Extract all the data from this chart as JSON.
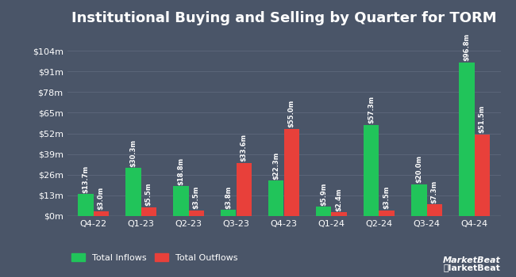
{
  "title": "Institutional Buying and Selling by Quarter for TORM",
  "quarters": [
    "Q4-22",
    "Q1-23",
    "Q2-23",
    "Q3-23",
    "Q4-23",
    "Q1-24",
    "Q2-24",
    "Q3-24",
    "Q4-24"
  ],
  "inflows": [
    13.7,
    30.3,
    18.8,
    3.8,
    22.3,
    5.9,
    57.3,
    20.0,
    96.8
  ],
  "outflows": [
    3.0,
    5.5,
    3.5,
    33.6,
    55.0,
    2.4,
    3.5,
    7.3,
    51.5
  ],
  "inflow_labels": [
    "$13.7m",
    "$30.3m",
    "$18.8m",
    "$3.8m",
    "$22.3m",
    "$5.9m",
    "$57.3m",
    "$20.0m",
    "$96.8m"
  ],
  "outflow_labels": [
    "$3.0m",
    "$5.5m",
    "$3.5m",
    "$33.6m",
    "$55.0m",
    "$2.4m",
    "$3.5m",
    "$7.3m",
    "$51.5m"
  ],
  "inflow_color": "#21c45a",
  "outflow_color": "#e8403a",
  "background_color": "#4a5568",
  "grid_color": "#5a6478",
  "text_color": "#ffffff",
  "bar_width": 0.32,
  "ylim": [
    0,
    115
  ],
  "yticks": [
    0,
    13,
    26,
    39,
    52,
    65,
    78,
    91,
    104
  ],
  "ytick_labels": [
    "$0m",
    "$13m",
    "$26m",
    "$39m",
    "$52m",
    "$65m",
    "$78m",
    "$91m",
    "$104m"
  ],
  "legend_inflow": "Total Inflows",
  "legend_outflow": "Total Outflows",
  "title_fontsize": 13,
  "label_fontsize": 6.0,
  "tick_fontsize": 8,
  "legend_fontsize": 8
}
